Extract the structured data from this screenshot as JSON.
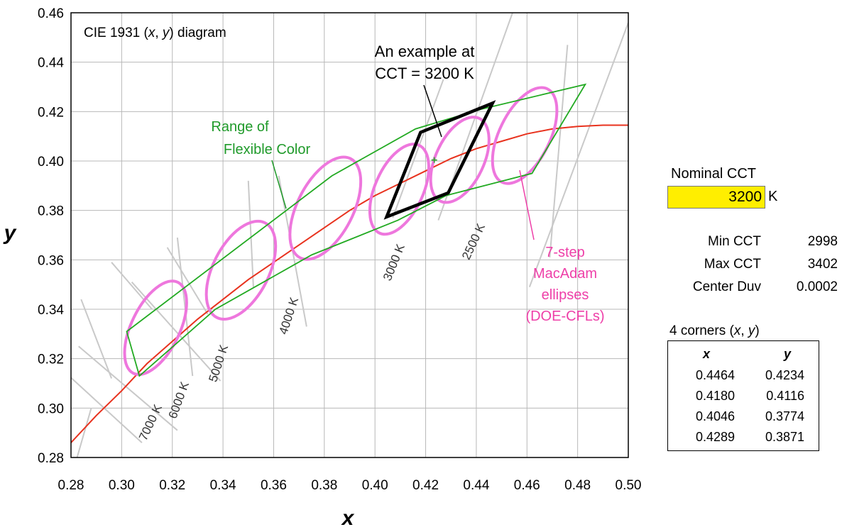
{
  "chart_data": {
    "type": "line",
    "title": "CIE 1931 (x, y) diagram",
    "title_parts": [
      "CIE 1931 (",
      "x",
      ", ",
      "y",
      ") diagram"
    ],
    "xlabel": "x",
    "ylabel": "y",
    "xlim": [
      0.28,
      0.5
    ],
    "ylim": [
      0.28,
      0.46
    ],
    "x_ticks": [
      "0.28",
      "0.30",
      "0.32",
      "0.34",
      "0.36",
      "0.38",
      "0.40",
      "0.42",
      "0.44",
      "0.46",
      "0.48",
      "0.50"
    ],
    "y_ticks": [
      "0.28",
      "0.30",
      "0.32",
      "0.34",
      "0.36",
      "0.38",
      "0.40",
      "0.42",
      "0.44",
      "0.46"
    ],
    "grid": true,
    "planckian_locus": {
      "color": "#e8321e",
      "points": [
        [
          0.28,
          0.286
        ],
        [
          0.29,
          0.297
        ],
        [
          0.3,
          0.307
        ],
        [
          0.31,
          0.318
        ],
        [
          0.32,
          0.327
        ],
        [
          0.33,
          0.336
        ],
        [
          0.34,
          0.344
        ],
        [
          0.35,
          0.352
        ],
        [
          0.36,
          0.359
        ],
        [
          0.37,
          0.366
        ],
        [
          0.38,
          0.373
        ],
        [
          0.39,
          0.38
        ],
        [
          0.4,
          0.386
        ],
        [
          0.41,
          0.391
        ],
        [
          0.42,
          0.396
        ],
        [
          0.43,
          0.401
        ],
        [
          0.44,
          0.405
        ],
        [
          0.45,
          0.408
        ],
        [
          0.46,
          0.411
        ],
        [
          0.47,
          0.413
        ],
        [
          0.48,
          0.414
        ],
        [
          0.49,
          0.4145
        ],
        [
          0.5,
          0.4145
        ]
      ]
    },
    "isotemperature_lines": [
      {
        "label": "7000 K",
        "p1": [
          0.275,
          0.317
        ],
        "p2": [
          0.308,
          0.286
        ]
      },
      {
        "label": "6000 K",
        "p1": [
          0.283,
          0.325
        ],
        "p2": [
          0.322,
          0.291
        ]
      },
      {
        "label": "5000 K",
        "p1": [
          0.304,
          0.351
        ],
        "p2": [
          0.339,
          0.311
        ]
      },
      {
        "label": "4000 K",
        "p1": [
          0.362,
          0.394
        ],
        "p2": [
          0.373,
          0.333
        ]
      },
      {
        "label": "3000 K",
        "p1": [
          0.407,
          0.377
        ],
        "p2": [
          0.427,
          0.433
        ]
      },
      {
        "label": "2500 K",
        "p1": [
          0.469,
          0.361
        ],
        "p2": [
          0.476,
          0.447
        ]
      }
    ],
    "extra_lines": [
      {
        "p1": [
          0.284,
          0.344
        ],
        "p2": [
          0.296,
          0.312
        ]
      },
      {
        "p1": [
          0.296,
          0.359
        ],
        "p2": [
          0.312,
          0.34
        ]
      },
      {
        "p1": [
          0.318,
          0.365
        ],
        "p2": [
          0.334,
          0.338
        ]
      },
      {
        "p1": [
          0.35,
          0.392
        ],
        "p2": [
          0.352,
          0.349
        ]
      },
      {
        "p1": [
          0.322,
          0.369
        ],
        "p2": [
          0.328,
          0.313
        ]
      },
      {
        "p1": [
          0.425,
          0.376
        ],
        "p2": [
          0.455,
          0.462
        ]
      },
      {
        "p1": [
          0.461,
          0.349
        ],
        "p2": [
          0.5,
          0.456
        ]
      },
      {
        "p1": [
          0.288,
          0.3
        ],
        "p2": [
          0.281,
          0.275
        ]
      }
    ],
    "range_of_flexible_color": {
      "label": [
        "Range of",
        "Flexible Color"
      ],
      "color": "#22aa22",
      "polygon": [
        [
          0.302,
          0.331
        ],
        [
          0.383,
          0.394
        ],
        [
          0.416,
          0.413
        ],
        [
          0.442,
          0.421
        ],
        [
          0.483,
          0.431
        ],
        [
          0.462,
          0.395
        ],
        [
          0.428,
          0.386
        ],
        [
          0.409,
          0.376
        ],
        [
          0.375,
          0.362
        ],
        [
          0.337,
          0.34
        ],
        [
          0.307,
          0.313
        ]
      ]
    },
    "macadam_ellipses": {
      "label": [
        "7-step",
        "MacAdam",
        "ellipses",
        "(DOE-CFLs)"
      ],
      "color": "#ee77dd",
      "ellipses": [
        {
          "cx": 0.3134,
          "cy": 0.3325,
          "rx": 0.0095,
          "ry": 0.0205,
          "angle": 26
        },
        {
          "cx": 0.3471,
          "cy": 0.3558,
          "rx": 0.011,
          "ry": 0.0215,
          "angle": 27
        },
        {
          "cx": 0.3804,
          "cy": 0.3809,
          "rx": 0.011,
          "ry": 0.0225,
          "angle": 27
        },
        {
          "cx": 0.4096,
          "cy": 0.3886,
          "rx": 0.0095,
          "ry": 0.0195,
          "angle": 24
        },
        {
          "cx": 0.4335,
          "cy": 0.4005,
          "rx": 0.0095,
          "ry": 0.0185,
          "angle": 25
        },
        {
          "cx": 0.4591,
          "cy": 0.4103,
          "rx": 0.01,
          "ry": 0.021,
          "angle": 26
        }
      ]
    },
    "example_quadrilateral": {
      "label": [
        "An example at",
        "CCT = 3200 K"
      ],
      "color": "#000000",
      "corners": [
        [
          0.4464,
          0.4234
        ],
        [
          0.418,
          0.4116
        ],
        [
          0.4046,
          0.3774
        ],
        [
          0.4289,
          0.3871
        ]
      ],
      "center": [
        0.4234,
        0.4004
      ]
    }
  },
  "panel": {
    "nominal_cct_label": "Nominal CCT",
    "nominal_cct_value": "3200",
    "nominal_cct_unit": "K",
    "stats": [
      {
        "label": "Min CCT",
        "value": "2998"
      },
      {
        "label": "Max CCT",
        "value": "3402"
      },
      {
        "label": "Center Duv",
        "value": "0.0002"
      }
    ],
    "corners_title_parts": [
      "4 corners (",
      "x",
      ", ",
      "y",
      ")"
    ],
    "corners_headers": [
      "x",
      "y"
    ],
    "corners": [
      [
        "0.4464",
        "0.4234"
      ],
      [
        "0.4180",
        "0.4116"
      ],
      [
        "0.4046",
        "0.3774"
      ],
      [
        "0.4289",
        "0.3871"
      ]
    ]
  }
}
